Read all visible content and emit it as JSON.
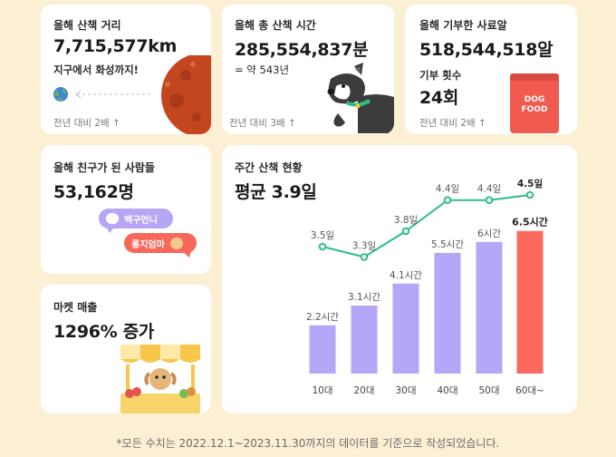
{
  "distance": {
    "label": "올해 산책 거리",
    "value": "7,715,577km",
    "caption": "지구에서 화성까지!",
    "compare": "전년 대비 2배 ↑"
  },
  "time": {
    "label": "올해 총 산책 시간",
    "value": "285,554,837분",
    "sub": "= 약 543년",
    "compare": "전년 대비 3배 ↑"
  },
  "feed": {
    "label": "올해 기부한 사료알",
    "value": "518,544,518알",
    "count_label": "기부 횟수",
    "count_value": "24회",
    "compare": "전년 대비 2배 ↑",
    "bag_text_1": "DOG",
    "bag_text_2": "FOOD"
  },
  "friends": {
    "label": "올해 친구가 된 사람들",
    "value": "53,162명",
    "bubble_1": "백구언니",
    "bubble_2": "롱지엄마"
  },
  "market": {
    "label": "마켓 매출",
    "value": "1296% 증가"
  },
  "weekly": {
    "label": "주간 산책 현황",
    "average": "평균 3.9일"
  },
  "chart_data": {
    "type": "bar",
    "categories": [
      "10대",
      "20대",
      "30대",
      "40대",
      "50대",
      "60대~"
    ],
    "series": [
      {
        "type": "bar",
        "values": [
          2.2,
          3.1,
          4.1,
          5.5,
          6,
          6.5
        ],
        "labels": [
          "2.2시간",
          "3.1시간",
          "4.1시간",
          "5.5시간",
          "6시간",
          "6.5시간"
        ]
      },
      {
        "type": "line",
        "values": [
          3.5,
          3.3,
          3.8,
          4.4,
          4.4,
          4.5
        ],
        "labels": [
          "3.5일",
          "3.3일",
          "3.8일",
          "4.4일",
          "4.4일",
          "4.5일"
        ]
      }
    ],
    "colors": {
      "bar": "#b5a6f7",
      "bar_highlight": "#fb6a5c",
      "line": "#2ebd8a"
    }
  },
  "footnote": "*모든 수치는 2022.12.1~2023.11.30까지의 데이터를 기준으로 작성되었습니다."
}
